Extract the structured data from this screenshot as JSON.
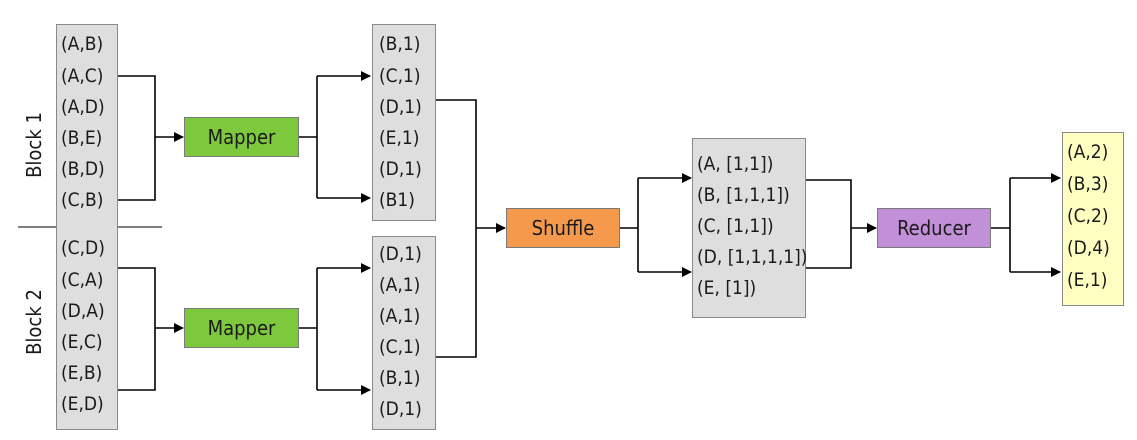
{
  "blocks": [
    {
      "label": "Block 1",
      "pairs": [
        "(A,B)",
        "(A,C)",
        "(A,D)",
        "(B,E)",
        "(B,D)",
        "(C,B)"
      ]
    },
    {
      "label": "Block 2",
      "pairs": [
        "(C,D)",
        "(C,A)",
        "(D,A)",
        "(E,C)",
        "(E,B)",
        "(E,D)"
      ]
    }
  ],
  "processors": {
    "mapper": "Mapper",
    "shuffle": "Shuffle",
    "reducer": "Reducer"
  },
  "mapper_outputs": [
    [
      "(B,1)",
      "(C,1)",
      "(D,1)",
      "(E,1)",
      "(D,1)",
      "(B1)"
    ],
    [
      "(D,1)",
      "(A,1)",
      "(A,1)",
      "(C,1)",
      "(B,1)",
      "(D,1)"
    ]
  ],
  "shuffle_output": [
    "(A, [1,1])",
    "(B, [1,1,1])",
    "(C, [1,1])",
    "(D, [1,1,1,1])",
    "(E, [1])"
  ],
  "reducer_output": [
    "(A,2)",
    "(B,3)",
    "(C,2)",
    "(D,4)",
    "(E,1)"
  ],
  "colors": {
    "list_box": "#dedede",
    "result_box": "#ffffc2",
    "mapper": "#7ec83e",
    "shuffle": "#f59a4d",
    "reducer": "#c190d9"
  }
}
